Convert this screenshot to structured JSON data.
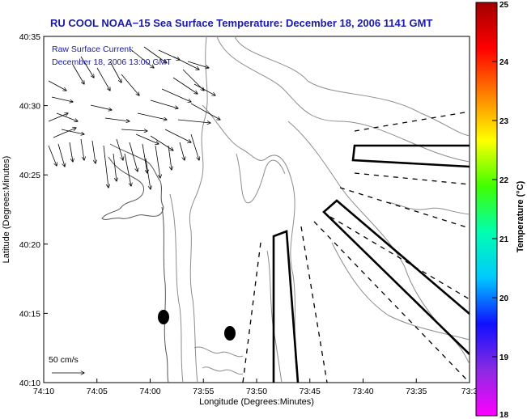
{
  "title": "RU COOL  NOAA−15  Sea Surface Temperature:  December 18, 2006 1141 GMT",
  "note": {
    "line1": "Raw Surface Current:",
    "line2": "December 18, 2006 13:00 GMT"
  },
  "scale_label": "50 cm/s",
  "axes": {
    "xlabel": "Longitude (Degrees:Minutes)",
    "ylabel": "Latitude (Degrees:Minutes)",
    "x_ticks": [
      "74:10",
      "74:05",
      "74:00",
      "73:55",
      "73:50",
      "73:45",
      "73:40",
      "73:35",
      "73:3"
    ],
    "y_ticks": [
      "40:35",
      "40:30",
      "40:25",
      "40:20",
      "40:15",
      "40:10"
    ]
  },
  "colorbar": {
    "label": "Temperature (°C)",
    "ticks": [
      "25",
      "24",
      "23",
      "22",
      "21",
      "20",
      "19",
      "18"
    ],
    "colors": [
      "#ff00ff",
      "#8a2be2",
      "#1010ff",
      "#00c8ff",
      "#00ffb0",
      "#40ff00",
      "#ffff00",
      "#ff8000",
      "#ff0000",
      "#a00000"
    ]
  },
  "colors": {
    "title": "#1a1aa8",
    "note": "#1a1aa8",
    "contour": "#8c8c8c",
    "coast": "#555555",
    "markers": "#000000"
  }
}
